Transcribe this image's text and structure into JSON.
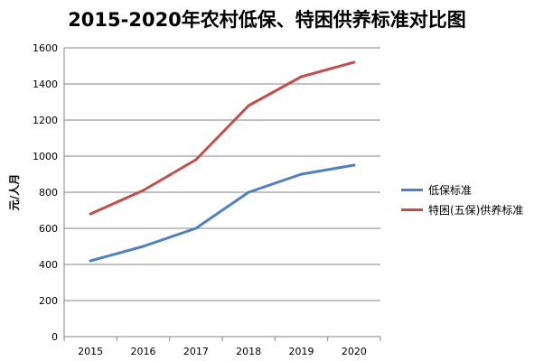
{
  "chart_data": {
    "type": "line",
    "title": "2015-2020年农村低保、特困供养标准对比图",
    "xlabel": "",
    "ylabel": "元/人月",
    "categories": [
      "2015",
      "2016",
      "2017",
      "2018",
      "2019",
      "2020"
    ],
    "ylim": [
      0,
      1600
    ],
    "yticks": [
      0,
      200,
      400,
      600,
      800,
      1000,
      1200,
      1400,
      1600
    ],
    "grid": true,
    "legend_position": "right",
    "series": [
      {
        "name": "低保标准",
        "color": "#4f81bd",
        "values": [
          420,
          500,
          600,
          800,
          900,
          950
        ]
      },
      {
        "name": "特困(五保)供养标准",
        "color": "#c0504d",
        "values": [
          680,
          810,
          980,
          1280,
          1440,
          1520
        ]
      }
    ]
  }
}
